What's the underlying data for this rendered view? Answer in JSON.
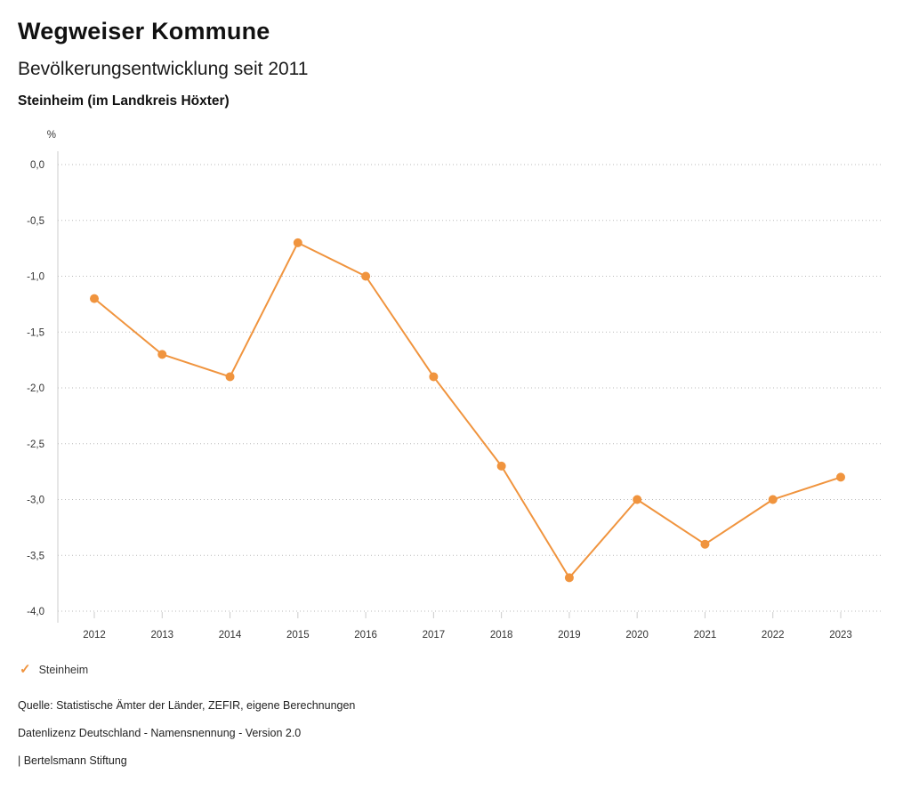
{
  "header": {
    "brand": "Wegweiser Kommune",
    "title": "Bevölkerungsentwicklung seit 2011",
    "subtitle": "Steinheim (im Landkreis Höxter)"
  },
  "chart_data": {
    "type": "line",
    "title": "Bevölkerungsentwicklung seit 2011",
    "subtitle": "Steinheim (im Landkreis Höxter)",
    "unit_label": "%",
    "xlabel": "",
    "ylabel": "%",
    "x": [
      "2012",
      "2013",
      "2014",
      "2015",
      "2016",
      "2017",
      "2018",
      "2019",
      "2020",
      "2021",
      "2022",
      "2023"
    ],
    "series": [
      {
        "name": "Steinheim",
        "color": "#F0943E",
        "values": [
          -1.2,
          -1.7,
          -1.9,
          -0.7,
          -1.0,
          -1.9,
          -2.7,
          -3.7,
          -3.0,
          -3.4,
          -3.0,
          -2.8
        ]
      }
    ],
    "ylim": [
      -4.0,
      0.0
    ],
    "ytick_values": [
      0.0,
      -0.5,
      -1.0,
      -1.5,
      -2.0,
      -2.5,
      -3.0,
      -3.5,
      -4.0
    ],
    "ytick_labels": [
      "0,0",
      "-0,5",
      "-1,0",
      "-1,5",
      "-2,0",
      "-2,5",
      "-3,0",
      "-3,5",
      "-4,0"
    ],
    "grid": true,
    "grid_style": "dotted",
    "legend_position": "bottom-left"
  },
  "legend": {
    "check_glyph": "✓",
    "label": "Steinheim",
    "accent_color": "#F0943E"
  },
  "footer": {
    "source": "Quelle: Statistische Ämter der Länder, ZEFIR, eigene Berechnungen",
    "license": "Datenlizenz Deutschland - Namensnennung - Version 2.0",
    "attribution": "| Bertelsmann Stiftung"
  }
}
